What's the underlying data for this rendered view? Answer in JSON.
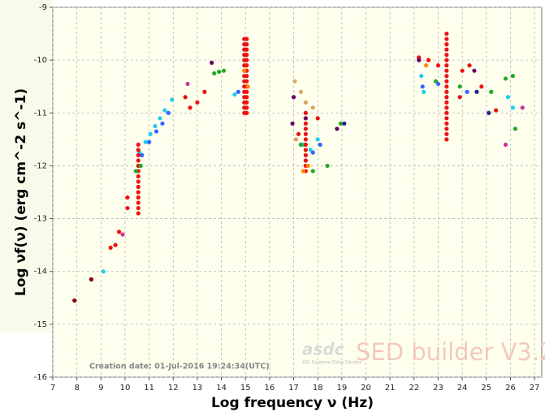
{
  "chart_data": {
    "type": "scatter",
    "x_label": "Log frequency ν (Hz)",
    "y_label": "Log νf(ν) (erg cm^-2 s^-1)",
    "annotation": "Creation date: 01-Jul-2016 19:24:34(UTC)",
    "watermark": {
      "logo": "asdc",
      "subtitle": "ASI Science Data Center",
      "product": "SED builder V3.2"
    },
    "xlim": [
      7,
      27.3
    ],
    "ylim": [
      -16,
      -9
    ],
    "xticks": [
      7,
      8,
      9,
      10,
      11,
      12,
      13,
      14,
      15,
      16,
      17,
      18,
      19,
      20,
      21,
      22,
      23,
      24,
      25,
      26,
      27
    ],
    "yticks": [
      -16,
      -15,
      -14,
      -13,
      -12,
      -11,
      -10,
      -9
    ],
    "grid": true,
    "series": [
      {
        "color": "#8b0000",
        "x": [
          7.9,
          8.6
        ],
        "values": [
          -14.55,
          -14.15
        ]
      },
      {
        "color": "#22ccee",
        "x": [
          9.1,
          10.6,
          10.85,
          11.05,
          11.25,
          11.45,
          11.65,
          11.95,
          14.55,
          17.4,
          17.7,
          18.0,
          22.3,
          22.4,
          25.9,
          26.1
        ],
        "values": [
          -14.0,
          -11.75,
          -11.55,
          -11.4,
          -11.25,
          -11.1,
          -10.95,
          -10.75,
          -10.65,
          -11.6,
          -11.7,
          -11.5,
          -10.3,
          -10.6,
          -10.7,
          -10.9
        ]
      },
      {
        "color": "#3366ff",
        "x": [
          10.7,
          11.0,
          11.3,
          11.55,
          11.8,
          14.7,
          17.5,
          17.8,
          18.1,
          22.35,
          23.0,
          24.2
        ],
        "values": [
          -11.8,
          -11.55,
          -11.35,
          -11.2,
          -11.0,
          -10.6,
          -11.9,
          -11.75,
          -11.6,
          -10.5,
          -10.45,
          -10.6
        ]
      },
      {
        "color": "#ee1111",
        "x": [
          9.4,
          9.6,
          9.75,
          10.1,
          10.1,
          12.7,
          13.0,
          12.5,
          13.3,
          18.0,
          17.2,
          22.2,
          22.6,
          23.0,
          24.0,
          24.3,
          24.8,
          25.4,
          23.9,
          10.55,
          10.55,
          10.55,
          10.55,
          10.55,
          10.55,
          10.55,
          10.55,
          10.55,
          10.55,
          10.55,
          10.55,
          10.55,
          10.55,
          14.95,
          14.95,
          14.95,
          14.95,
          14.95,
          14.95,
          14.95,
          14.95,
          14.95,
          14.95,
          14.95,
          14.95,
          14.95,
          14.95,
          14.95,
          15.05,
          15.05,
          15.05,
          15.05,
          15.05,
          15.05,
          15.05,
          15.05,
          15.05,
          15.05,
          15.05,
          15.05,
          15.05,
          15.05,
          15.05,
          23.35,
          23.35,
          23.35,
          23.35,
          23.35,
          23.35,
          23.35,
          23.35,
          23.35,
          23.35,
          23.35,
          23.35,
          23.35,
          23.35,
          23.35,
          23.35,
          23.35,
          23.35,
          23.35,
          23.35,
          23.35,
          17.5,
          17.5,
          17.5,
          17.5,
          17.5,
          17.5,
          17.5,
          17.5,
          17.5,
          17.5,
          17.5,
          17.5
        ],
        "values": [
          -13.55,
          -13.5,
          -13.25,
          -12.6,
          -12.8,
          -10.9,
          -10.8,
          -10.7,
          -10.6,
          -11.1,
          -11.4,
          -9.95,
          -10.0,
          -10.1,
          -10.2,
          -10.1,
          -10.5,
          -10.95,
          -10.7,
          -11.6,
          -11.7,
          -11.8,
          -11.9,
          -12.0,
          -12.1,
          -12.2,
          -12.3,
          -12.4,
          -12.5,
          -12.6,
          -12.7,
          -12.8,
          -12.9,
          -9.6,
          -9.7,
          -9.8,
          -9.9,
          -10.0,
          -10.1,
          -10.2,
          -10.3,
          -10.4,
          -10.5,
          -10.6,
          -10.7,
          -10.8,
          -10.9,
          -11.0,
          -9.6,
          -9.7,
          -9.8,
          -9.9,
          -10.0,
          -10.1,
          -10.2,
          -10.3,
          -10.4,
          -10.5,
          -10.6,
          -10.7,
          -10.8,
          -10.9,
          -11.0,
          -9.5,
          -9.6,
          -9.7,
          -9.8,
          -9.9,
          -10.0,
          -10.1,
          -10.2,
          -10.3,
          -10.4,
          -10.5,
          -10.6,
          -10.7,
          -10.8,
          -10.9,
          -11.0,
          -11.1,
          -11.2,
          -11.3,
          -11.4,
          -11.5,
          -11.0,
          -11.1,
          -11.2,
          -11.3,
          -11.4,
          -11.5,
          -11.6,
          -11.7,
          -11.8,
          -11.9,
          -12.0,
          -12.1
        ]
      },
      {
        "color": "#22aa22",
        "x": [
          10.45,
          10.65,
          13.7,
          13.9,
          14.1,
          17.3,
          17.8,
          18.4,
          18.95,
          22.9,
          23.9,
          25.2,
          25.8,
          26.1,
          26.2
        ],
        "values": [
          -12.1,
          -12.0,
          -10.25,
          -10.22,
          -10.2,
          -11.6,
          -12.1,
          -12.0,
          -11.2,
          -10.4,
          -10.5,
          -10.6,
          -10.35,
          -10.3,
          -11.3
        ]
      },
      {
        "color": "#660066",
        "x": [
          13.6,
          16.95,
          17.0,
          17.5,
          18.8,
          22.2,
          24.5
        ],
        "values": [
          -10.05,
          -11.2,
          -10.7,
          -11.1,
          -11.3,
          -10.0,
          -10.2
        ]
      },
      {
        "color": "#cc3399",
        "x": [
          9.9,
          12.6,
          25.8,
          26.5
        ],
        "values": [
          -13.3,
          -10.45,
          -11.6,
          -10.9
        ]
      },
      {
        "color": "#d8a868",
        "x": [
          17.05,
          17.3,
          17.5,
          17.8,
          17.1
        ],
        "values": [
          -10.4,
          -10.6,
          -10.8,
          -10.9,
          -11.5
        ]
      },
      {
        "color": "#222288",
        "x": [
          19.1,
          24.6,
          25.1
        ],
        "values": [
          -11.2,
          -10.6,
          -11.0
        ]
      },
      {
        "color": "#ff8800",
        "x": [
          14.95,
          15.1,
          17.4,
          17.6,
          22.5
        ],
        "values": [
          -10.2,
          -10.5,
          -12.1,
          -12.0,
          -10.1
        ]
      }
    ]
  }
}
